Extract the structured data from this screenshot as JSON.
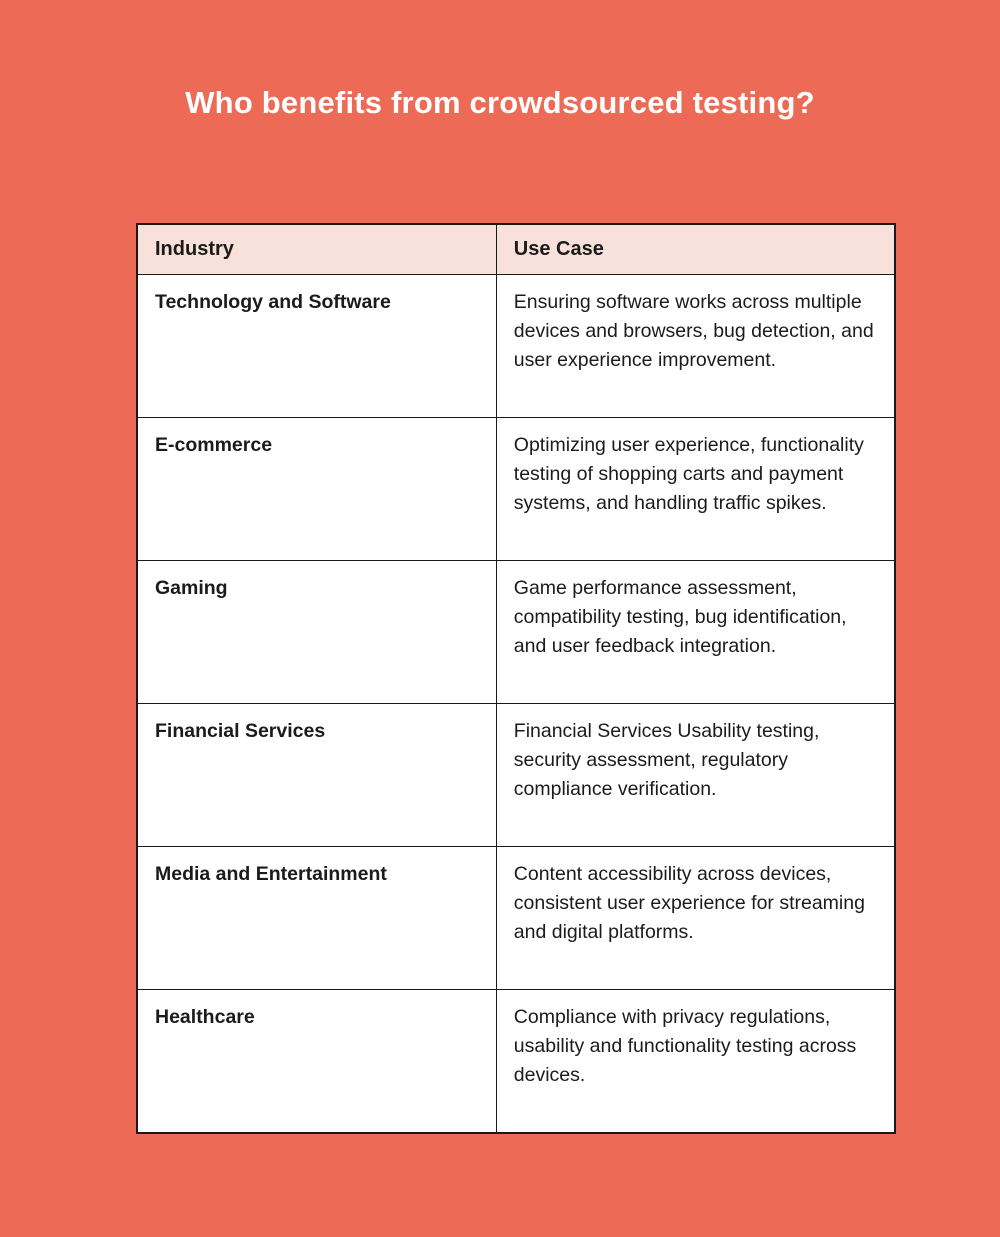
{
  "page": {
    "title": "Who benefits from crowdsourced testing?",
    "background_color": "#EC6A56",
    "title_color": "#FFFFFF"
  },
  "table": {
    "header_bg": "#F8E1DB",
    "border_color": "#1A1A1A",
    "cell_bg": "#FFFFFF",
    "text_color": "#1B1B1B",
    "columns": [
      "Industry",
      "Use Case"
    ],
    "rows": [
      {
        "industry": "Technology and Software",
        "use_case": "Ensuring software works across multiple devices and browsers, bug detection, and user experience improvement."
      },
      {
        "industry": "E-commerce",
        "use_case": "Optimizing user experience, functionality testing of shopping carts and payment systems, and handling traffic spikes."
      },
      {
        "industry": "Gaming",
        "use_case": "Game performance assessment, compatibility testing, bug identification, and user feedback integration."
      },
      {
        "industry": "Financial Services",
        "use_case": "Financial Services Usability testing, security assessment, regulatory compliance verification."
      },
      {
        "industry": "Media and Entertainment",
        "use_case": "Content accessibility across devices, consistent user experience for streaming and digital platforms."
      },
      {
        "industry": "Healthcare",
        "use_case": "Compliance with privacy regulations, usability and functionality testing across devices."
      }
    ]
  }
}
